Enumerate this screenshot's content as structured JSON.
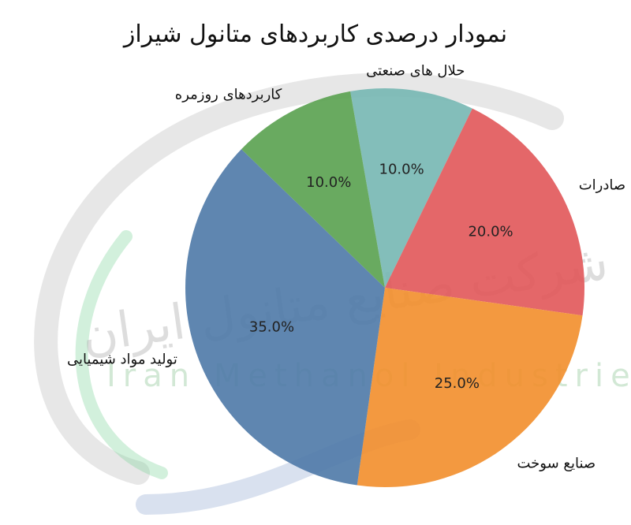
{
  "chart_data": {
    "type": "pie",
    "title": "نمودار درصدی کاربردهای متانول شیراز",
    "categories": [
      "حلال های صنعتی",
      "صادرات",
      "صنایع سوخت",
      "تولید مواد شیمیایی",
      "کاربردهای روزمره"
    ],
    "values": [
      10.0,
      20.0,
      25.0,
      35.0,
      10.0
    ],
    "percent_labels": [
      "10.0%",
      "20.0%",
      "25.0%",
      "35.0%",
      "10.0%"
    ],
    "colors": [
      "#76b7b2",
      "#e15759",
      "#f28e2b",
      "#4e79a7",
      "#59a14f"
    ],
    "start_angle_deg": 100,
    "direction": "clockwise",
    "legend": "none"
  },
  "watermark": {
    "text_latin": "Iran Methanol Industries Co",
    "text_farsi": "شرکت صنایع متانول ایران"
  }
}
